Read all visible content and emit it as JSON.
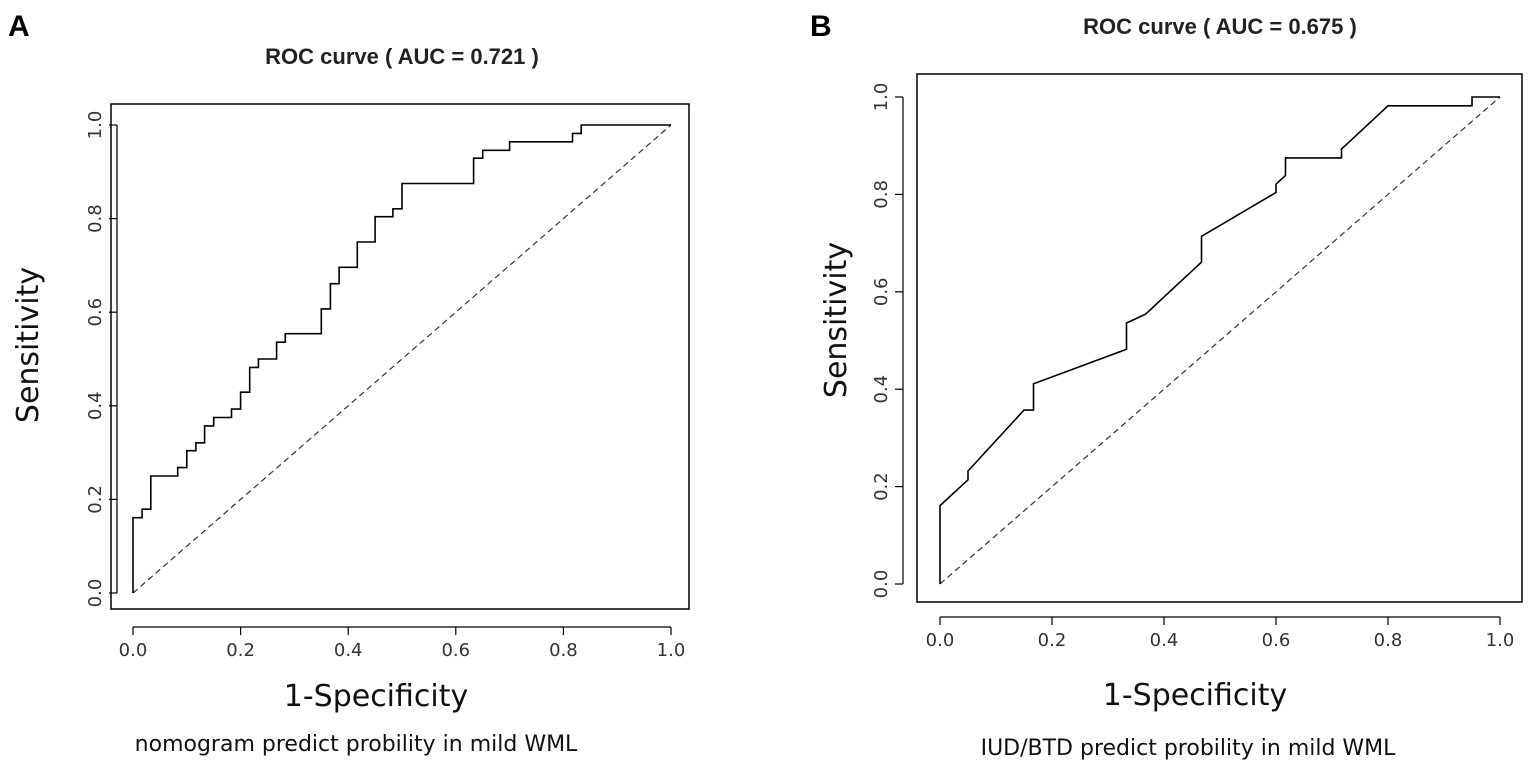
{
  "chart_data": [
    {
      "type": "line",
      "panel": "A",
      "title": "ROC curve ( AUC =  0.721 )",
      "xlabel": "1-Specificity",
      "ylabel": "Sensitivity",
      "caption": "nomogram predict probility in mild WML",
      "xlim": [
        0,
        1
      ],
      "ylim": [
        0,
        1
      ],
      "xticks": [
        "0.0",
        "0.2",
        "0.4",
        "0.6",
        "0.8",
        "1.0"
      ],
      "yticks": [
        "0.0",
        "0.2",
        "0.4",
        "0.6",
        "0.8",
        "1.0"
      ],
      "auc": 0.721,
      "series": [
        {
          "name": "ROC",
          "style": "solid",
          "x": [
            0,
            0,
            0.017,
            0.017,
            0.033,
            0.033,
            0.083,
            0.083,
            0.1,
            0.1,
            0.117,
            0.117,
            0.133,
            0.133,
            0.15,
            0.15,
            0.183,
            0.183,
            0.2,
            0.2,
            0.217,
            0.217,
            0.233,
            0.233,
            0.267,
            0.267,
            0.283,
            0.283,
            0.35,
            0.35,
            0.367,
            0.367,
            0.383,
            0.383,
            0.417,
            0.417,
            0.45,
            0.45,
            0.483,
            0.483,
            0.5,
            0.5,
            0.633,
            0.633,
            0.65,
            0.65,
            0.7,
            0.7,
            0.817,
            0.817,
            0.833,
            0.833,
            1
          ],
          "y": [
            0,
            0.161,
            0.161,
            0.179,
            0.179,
            0.25,
            0.25,
            0.268,
            0.268,
            0.304,
            0.304,
            0.321,
            0.321,
            0.357,
            0.357,
            0.375,
            0.375,
            0.393,
            0.393,
            0.429,
            0.429,
            0.482,
            0.482,
            0.5,
            0.5,
            0.536,
            0.536,
            0.554,
            0.554,
            0.607,
            0.607,
            0.661,
            0.661,
            0.696,
            0.696,
            0.75,
            0.75,
            0.804,
            0.804,
            0.821,
            0.821,
            0.875,
            0.875,
            0.929,
            0.929,
            0.946,
            0.946,
            0.964,
            0.964,
            0.982,
            0.982,
            1,
            1
          ]
        },
        {
          "name": "Reference",
          "style": "dashed",
          "x": [
            0,
            1
          ],
          "y": [
            0,
            1
          ]
        }
      ]
    },
    {
      "type": "line",
      "panel": "B",
      "title": "ROC curve ( AUC =  0.675 )",
      "xlabel": "1-Specificity",
      "ylabel": "Sensitivity",
      "caption": "IUD/BTD predict probility in mild WML",
      "xlim": [
        0,
        1
      ],
      "ylim": [
        0,
        1
      ],
      "xticks": [
        "0.0",
        "0.2",
        "0.4",
        "0.6",
        "0.8",
        "1.0"
      ],
      "yticks": [
        "0.0",
        "0.2",
        "0.4",
        "0.6",
        "0.8",
        "1.0"
      ],
      "auc": 0.675,
      "series": [
        {
          "name": "ROC",
          "style": "solid",
          "x": [
            0,
            0,
            0.05,
            0.05,
            0.15,
            0.167,
            0.167,
            0.333,
            0.333,
            0.367,
            0.45,
            0.467,
            0.467,
            0.6,
            0.6,
            0.617,
            0.617,
            0.717,
            0.717,
            0.8,
            0.95,
            0.95,
            1
          ],
          "y": [
            0,
            0.161,
            0.214,
            0.232,
            0.357,
            0.357,
            0.411,
            0.482,
            0.536,
            0.554,
            0.643,
            0.661,
            0.714,
            0.804,
            0.821,
            0.839,
            0.875,
            0.875,
            0.893,
            0.982,
            0.982,
            1,
            1
          ]
        },
        {
          "name": "Reference",
          "style": "dashed",
          "x": [
            0,
            1
          ],
          "y": [
            0,
            1
          ]
        }
      ]
    }
  ]
}
